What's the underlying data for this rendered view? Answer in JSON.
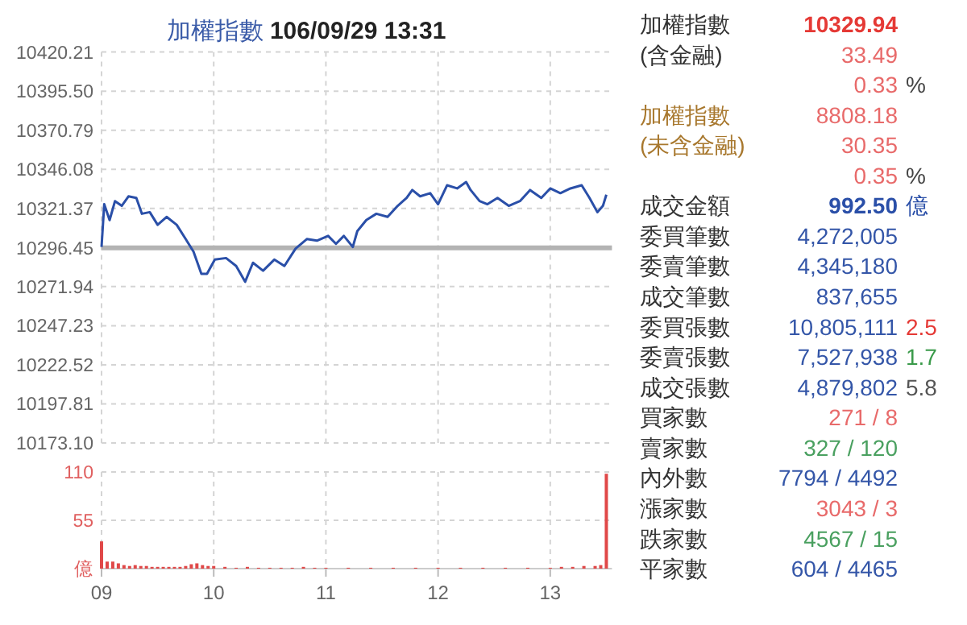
{
  "chart_data": [
    {
      "type": "line",
      "title": "加權指數 **106/09/29 13:31**",
      "color": "#2a4fa8",
      "x": [
        9.0,
        9.024,
        9.072,
        9.12,
        9.18,
        9.24,
        9.31,
        9.36,
        9.43,
        9.5,
        9.58,
        9.67,
        9.75,
        9.82,
        9.89,
        9.94,
        10.01,
        10.11,
        10.2,
        10.28,
        10.35,
        10.44,
        10.54,
        10.63,
        10.73,
        10.83,
        10.92,
        11.02,
        11.09,
        11.16,
        11.24,
        11.28,
        11.36,
        11.45,
        11.55,
        11.64,
        11.72,
        11.77,
        11.84,
        11.93,
        12.0,
        12.08,
        12.17,
        12.25,
        12.29,
        12.37,
        12.44,
        12.53,
        12.63,
        12.73,
        12.82,
        12.92,
        13.0,
        13.09,
        13.18,
        13.28,
        13.35,
        13.42,
        13.47,
        13.5
      ],
      "values": [
        10297,
        10324,
        10314,
        10326,
        10323,
        10329,
        10328,
        10318,
        10319,
        10311,
        10316,
        10311,
        10302,
        10294,
        10280,
        10280,
        10289,
        10290,
        10285,
        10275,
        10287,
        10282,
        10289,
        10285,
        10296,
        10302,
        10301,
        10304,
        10299,
        10304,
        10297,
        10307,
        10314,
        10318,
        10316,
        10323,
        10328,
        10333,
        10329,
        10331,
        10324,
        10336,
        10334,
        10338,
        10333,
        10326,
        10324,
        10328,
        10323,
        10326,
        10333,
        10328,
        10334,
        10331,
        10334,
        10336,
        10328,
        10319,
        10323,
        10330
      ],
      "xlim": [
        9,
        13.55
      ],
      "xticks": [
        {
          "value": 9,
          "label": null
        },
        {
          "value": 10,
          "label": null
        },
        {
          "value": 11,
          "label": null
        },
        {
          "value": 12,
          "label": null
        },
        {
          "value": 13,
          "label": null
        }
      ],
      "ylim": [
        10173.1,
        10420.21
      ],
      "yticks": [
        10420.21,
        {
          "value": 10395.5,
          "label": "10395.50"
        },
        10370.79,
        10346.08,
        10321.37,
        10296.45,
        10271.94,
        10247.23,
        10222.52,
        10197.81,
        {
          "value": 10173.1,
          "label": "10173.10"
        }
      ],
      "tick_labels": "y",
      "grid": true,
      "ref_lines": [
        {
          "axis": "y",
          "value": 10296.45,
          "color": "#b3b3b3"
        }
      ]
    },
    {
      "type": "bar",
      "color": "#e04848",
      "x": [
        9.0,
        9.05,
        9.1,
        9.15,
        9.2,
        9.25,
        9.3,
        9.35,
        9.4,
        9.45,
        9.5,
        9.55,
        9.6,
        9.65,
        9.7,
        9.75,
        9.8,
        9.85,
        9.9,
        9.95,
        10.0,
        10.1,
        10.2,
        10.3,
        10.4,
        10.5,
        10.6,
        10.7,
        10.8,
        10.9,
        11.0,
        11.2,
        11.4,
        11.6,
        11.8,
        12.0,
        12.2,
        12.4,
        12.6,
        12.8,
        13.0,
        13.1,
        13.2,
        13.3,
        13.4,
        13.45,
        13.5
      ],
      "values": [
        31,
        8,
        8,
        6,
        4,
        3,
        4,
        3,
        3,
        2,
        2,
        2,
        2,
        2,
        2,
        3,
        5,
        6,
        4,
        3,
        3,
        2,
        1,
        2,
        1,
        1,
        1,
        1,
        2,
        1,
        1,
        1,
        1,
        1,
        1,
        1,
        1,
        1,
        1,
        1,
        1,
        2,
        2,
        3,
        3,
        4,
        108
      ],
      "xlim": [
        9,
        13.55
      ],
      "xticks": [
        {
          "value": 9,
          "label": "09"
        },
        {
          "value": 10,
          "label": "10"
        },
        {
          "value": 11,
          "label": "11"
        },
        {
          "value": 12,
          "label": "12"
        },
        {
          "value": 13,
          "label": "13"
        }
      ],
      "ylim": [
        0,
        110
      ],
      "yticks": [
        {
          "value": 0,
          "label": "億"
        },
        55,
        110
      ],
      "grid": true
    },
    {
      "type": "other",
      "annotations": [
        "加權指數",
        "10329.94",
        "(含金融)",
        "33.49",
        "0.33",
        "%",
        "加權指數",
        "8808.18",
        "(未含金融)",
        "30.35",
        "0.35",
        "%",
        "成交金額",
        "992.50",
        "億",
        "委買筆數",
        "4,272,005",
        "委賣筆數",
        "4,345,180",
        "成交筆數",
        "837,655",
        "委買張數",
        "10,805,111",
        "2.5",
        "委賣張數",
        "7,527,938",
        "1.7",
        "成交張數",
        "4,879,802",
        "5.8",
        "買家數",
        "271 / 8",
        "賣家數",
        "327 / 120",
        "內外數",
        "7794 / 4492",
        "漲家數",
        "3043 / 3",
        "跌家數",
        "4567 / 15",
        "平家數",
        "604 / 4465"
      ],
      "colors": [
        "#333333",
        "#e53935",
        "#333333",
        "#e86a6a",
        "#e86a6a",
        "#444444",
        "#a8782e",
        "#e86a6a",
        "#a8782e",
        "#e86a6a",
        "#e86a6a",
        "#444444",
        "#333333",
        "#2a4fa8",
        "#2a4fa8",
        "#333333",
        "#3456a8",
        "#333333",
        "#3456a8",
        "#333333",
        "#3456a8",
        "#333333",
        "#3456a8",
        "#e53935",
        "#333333",
        "#3456a8",
        "#3a9a4a",
        "#333333",
        "#3456a8",
        "#555555",
        "#333333",
        "#e86a6a",
        "#333333",
        "#4aa060",
        "#333333",
        "#3456a8",
        "#333333",
        "#e86a6a",
        "#333333",
        "#4aa060",
        "#333333",
        "#3456a8"
      ]
    }
  ]
}
